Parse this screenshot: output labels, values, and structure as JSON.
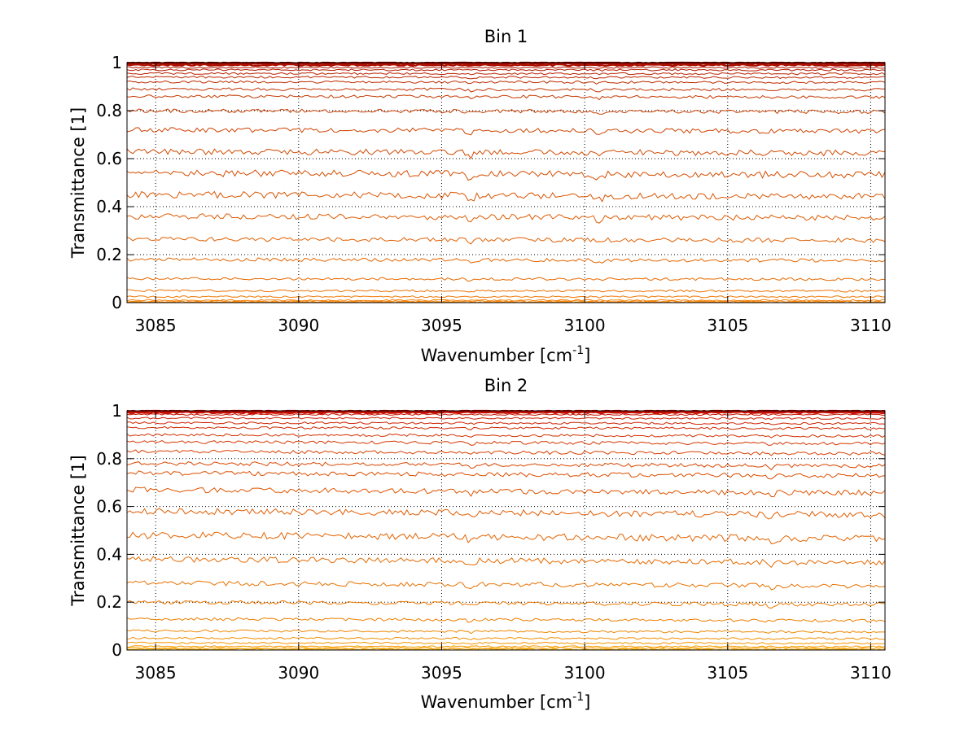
{
  "chart_data": [
    {
      "type": "line",
      "title": "Bin 1",
      "xlabel": "Wavenumber [cm",
      "xlabel_sup": "-1",
      "xlabel_suffix": "]",
      "ylabel": "Transmittance [1]",
      "xlim": [
        3084,
        3110.5
      ],
      "ylim": [
        0,
        1
      ],
      "xticks": [
        3085,
        3090,
        3095,
        3100,
        3105,
        3110
      ],
      "xtick_labels": [
        "3085",
        "3090",
        "3095",
        "3100",
        "3105",
        "3110"
      ],
      "yticks": [
        0,
        0.2,
        0.4,
        0.6,
        0.8,
        1
      ],
      "ytick_labels": [
        "0",
        "0.2",
        "0.4",
        "0.6",
        "0.8",
        "1"
      ],
      "grid": true,
      "series_levels": [
        1.0,
        0.998,
        0.995,
        0.99,
        0.98,
        0.97,
        0.955,
        0.94,
        0.92,
        0.89,
        0.86,
        0.8,
        0.72,
        0.63,
        0.54,
        0.45,
        0.36,
        0.265,
        0.18,
        0.1,
        0.05,
        0.025,
        0.01,
        0.005,
        0.002,
        0.0
      ],
      "series_trend": -0.015,
      "series_color_from": "#a00000",
      "series_color_to": "#ff8c00",
      "dip_locations": [
        3096,
        3100.5
      ]
    },
    {
      "type": "line",
      "title": "Bin 2",
      "xlabel": "Wavenumber [cm",
      "xlabel_sup": "-1",
      "xlabel_suffix": "]",
      "ylabel": "Transmittance [1]",
      "xlim": [
        3084,
        3110.5
      ],
      "ylim": [
        0,
        1
      ],
      "xticks": [
        3085,
        3090,
        3095,
        3100,
        3105,
        3110
      ],
      "xtick_labels": [
        "3085",
        "3090",
        "3095",
        "3100",
        "3105",
        "3110"
      ],
      "yticks": [
        0,
        0.2,
        0.4,
        0.6,
        0.8,
        1
      ],
      "ytick_labels": [
        "0",
        "0.2",
        "0.4",
        "0.6",
        "0.8",
        "1"
      ],
      "grid": true,
      "series_levels": [
        1.0,
        0.997,
        0.993,
        0.985,
        0.97,
        0.95,
        0.93,
        0.9,
        0.87,
        0.83,
        0.78,
        0.74,
        0.67,
        0.58,
        0.48,
        0.38,
        0.28,
        0.2,
        0.13,
        0.08,
        0.05,
        0.03,
        0.015,
        0.008,
        0.003,
        0.0
      ],
      "series_trend": -0.03,
      "series_color_from": "#c00000",
      "series_color_to": "#ffb000",
      "dip_locations": [
        3096,
        3106.5
      ]
    }
  ]
}
